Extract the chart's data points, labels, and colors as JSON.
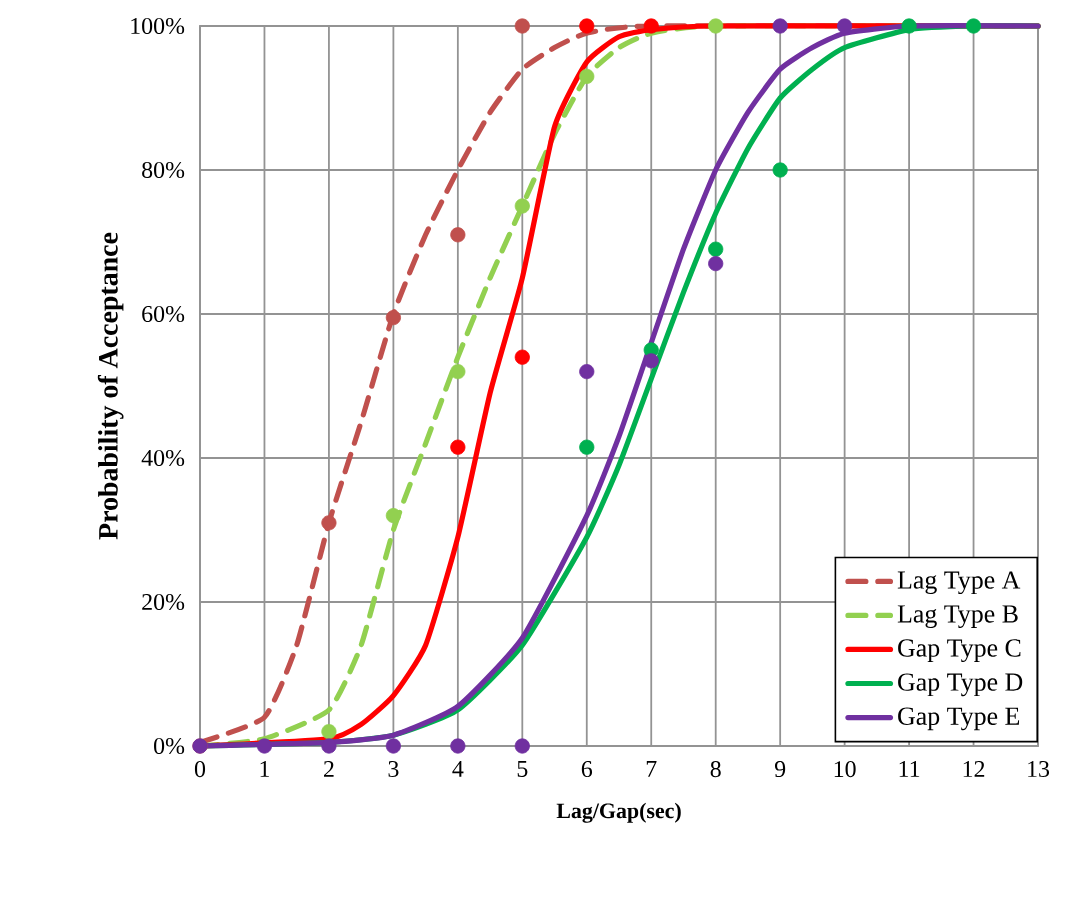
{
  "chart_data": {
    "type": "line",
    "xlabel": "Lag/Gap(sec)",
    "ylabel": "Probability of Acceptance",
    "xlim": [
      0,
      13
    ],
    "ylim": [
      0,
      100
    ],
    "xticks": [
      0,
      1,
      2,
      3,
      4,
      5,
      6,
      7,
      8,
      9,
      10,
      11,
      12,
      13
    ],
    "yticks": [
      {
        "value": 0,
        "label": "0%"
      },
      {
        "value": 20,
        "label": "20%"
      },
      {
        "value": 40,
        "label": "40%"
      },
      {
        "value": 60,
        "label": "60%"
      },
      {
        "value": 80,
        "label": "80%"
      },
      {
        "value": 100,
        "label": "100%"
      }
    ],
    "grid": true,
    "legend": "bottom right",
    "marker": "none",
    "series": [
      {
        "name": "Lag Type A",
        "color": "#c0504d",
        "line_style": "dashed",
        "x": [
          0,
          1,
          1.5,
          2,
          2.5,
          3,
          3.5,
          4,
          4.5,
          5,
          5.5,
          6,
          7,
          13
        ],
        "values": [
          0.5,
          4,
          14,
          31,
          45,
          60,
          71,
          80,
          88,
          94,
          97,
          99,
          100,
          100
        ]
      },
      {
        "name": "Lag Type B",
        "color": "#92d050",
        "line_style": "dashed",
        "x": [
          0,
          1,
          2,
          2.5,
          3,
          3.5,
          4,
          4.5,
          5,
          5.5,
          6,
          6.5,
          7,
          8,
          13
        ],
        "values": [
          0,
          1,
          5,
          14,
          30,
          42,
          54,
          65,
          75,
          85,
          93,
          97,
          99,
          100,
          100
        ]
      },
      {
        "name": "Gap Type C",
        "color": "#ff0000",
        "line_style": "solid",
        "x": [
          0,
          2,
          2.5,
          3,
          3.5,
          4,
          4.5,
          5,
          5.5,
          6,
          6.5,
          7,
          8,
          13
        ],
        "values": [
          0,
          1,
          3,
          7,
          14,
          29,
          49,
          65,
          86,
          95,
          98.5,
          99.5,
          100,
          100
        ]
      },
      {
        "name": "Gap Type D",
        "color": "#00b050",
        "line_style": "solid",
        "x": [
          0,
          2,
          3,
          4,
          5,
          6,
          6.5,
          7,
          7.5,
          8,
          8.5,
          9,
          9.5,
          10,
          11,
          12,
          13
        ],
        "values": [
          0,
          0.5,
          1.5,
          5,
          14,
          29,
          39,
          51,
          63,
          74,
          83,
          90,
          94,
          97,
          99.5,
          100,
          100
        ]
      },
      {
        "name": "Gap Type E",
        "color": "#7030a0",
        "line_style": "solid",
        "x": [
          0,
          2,
          3,
          4,
          5,
          6,
          6.5,
          7,
          7.5,
          8,
          8.5,
          9,
          9.5,
          10,
          11,
          13
        ],
        "values": [
          0,
          0.5,
          1.5,
          5.5,
          15,
          32,
          43,
          56,
          69,
          80,
          88,
          94,
          97,
          99,
          100,
          100
        ]
      },
      {
        "type": "scatter",
        "marker": "circle",
        "color": "#c0504d",
        "x": [
          0,
          2,
          3,
          4,
          5
        ],
        "values": [
          0,
          31,
          59.5,
          71,
          100
        ]
      },
      {
        "type": "scatter",
        "marker": "circle",
        "color": "#92d050",
        "x": [
          2,
          3,
          4,
          5,
          6,
          8
        ],
        "values": [
          2,
          32,
          52,
          75,
          93,
          100
        ]
      },
      {
        "type": "scatter",
        "marker": "circle",
        "color": "#ff0000",
        "x": [
          4,
          5,
          6,
          7
        ],
        "values": [
          41.5,
          54,
          100,
          100
        ]
      },
      {
        "type": "scatter",
        "marker": "circle",
        "color": "#00b050",
        "x": [
          6,
          7,
          8,
          9,
          11,
          12
        ],
        "values": [
          41.5,
          55,
          69,
          80,
          100,
          100
        ]
      },
      {
        "type": "scatter",
        "marker": "circle",
        "color": "#7030a0",
        "x": [
          0,
          1,
          2,
          3,
          4,
          5,
          6,
          7,
          8,
          9,
          10
        ],
        "values": [
          0,
          0,
          0,
          0,
          0,
          0,
          52,
          53.5,
          67,
          100,
          100
        ]
      }
    ]
  }
}
